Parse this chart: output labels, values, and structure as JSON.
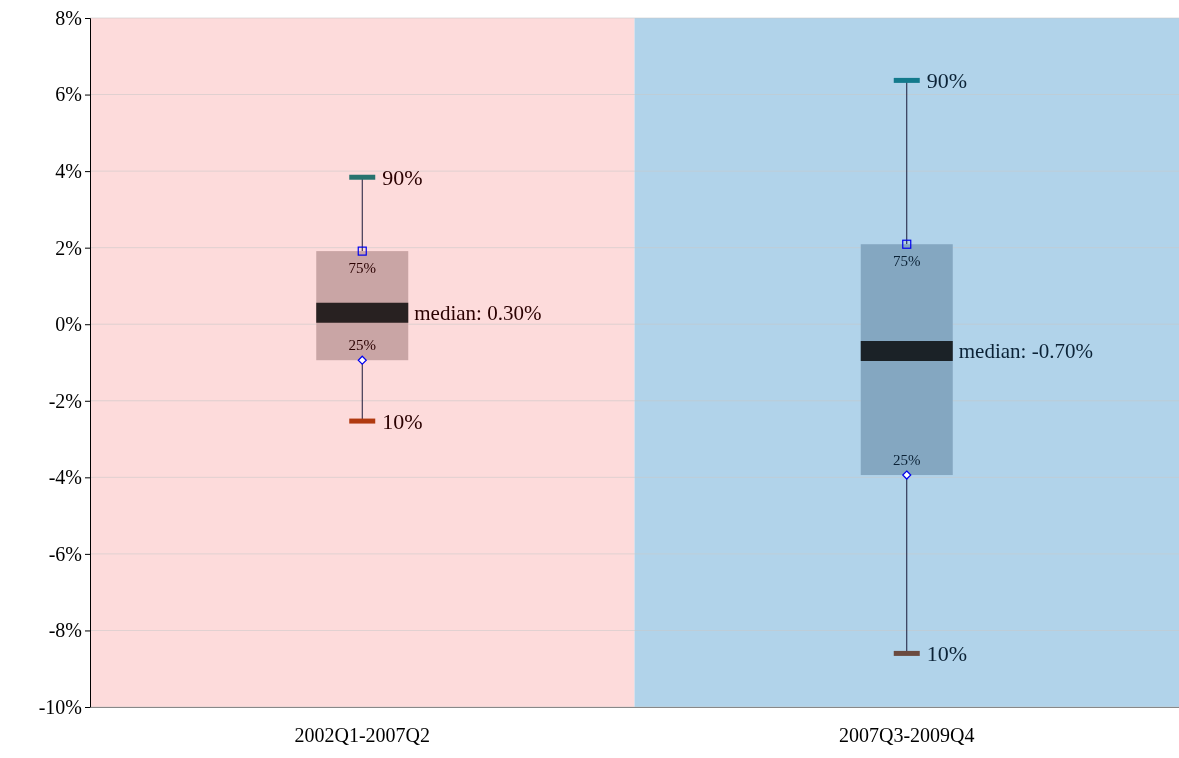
{
  "chart_data": {
    "type": "box",
    "categories": [
      "2002Q1-2007Q2",
      "2007Q3-2009Q4"
    ],
    "boxes": [
      {
        "low": -2.53,
        "q1": -0.94,
        "median": 0.3,
        "q3": 1.91,
        "high": 3.84
      },
      {
        "low": -8.6,
        "q1": -3.94,
        "median": -0.7,
        "q3": 2.09,
        "high": 6.37
      }
    ],
    "colors": [
      "#c9a5a5",
      "#84a7c1"
    ],
    "ylim": [
      -10,
      8
    ],
    "yticks": [
      {
        "value": -10,
        "label": "-10%"
      },
      {
        "value": -8,
        "label": "-8%"
      },
      {
        "value": -6,
        "label": "-6%"
      },
      {
        "value": -4,
        "label": "-4%"
      },
      {
        "value": -2,
        "label": "-2%"
      },
      {
        "value": 0,
        "label": "0%"
      },
      {
        "value": 2,
        "label": "2%"
      },
      {
        "value": 4,
        "label": "4%"
      },
      {
        "value": 6,
        "label": "6%"
      },
      {
        "value": 8,
        "label": "8%"
      }
    ],
    "grid": "y",
    "bands": [
      {
        "axis": "x",
        "from": "2002Q1-2007Q2",
        "to": "2002Q1-2007Q2",
        "color": "#fddbdb"
      },
      {
        "axis": "x",
        "from": "2007Q3-2009Q4",
        "to": "2007Q3-2009Q4",
        "color": "#b1d3ea"
      }
    ],
    "annotations": [
      {
        "text": "90%",
        "x": "2002Q1-2007Q2",
        "y": 3.84
      },
      {
        "text": "75%",
        "x": "2002Q1-2007Q2",
        "y": 1.91
      },
      {
        "text": "median: 0.30%",
        "x": "2002Q1-2007Q2",
        "y": 0.3
      },
      {
        "text": "25%",
        "x": "2002Q1-2007Q2",
        "y": -0.94
      },
      {
        "text": "10%",
        "x": "2002Q1-2007Q2",
        "y": -2.53
      },
      {
        "text": "90%",
        "x": "2007Q3-2009Q4",
        "y": 6.37
      },
      {
        "text": "75%",
        "x": "2007Q3-2009Q4",
        "y": 2.09
      },
      {
        "text": "median: -0.70%",
        "x": "2007Q3-2009Q4",
        "y": -0.7
      },
      {
        "text": "25%",
        "x": "2007Q3-2009Q4",
        "y": -3.94
      },
      {
        "text": "10%",
        "x": "2007Q3-2009Q4",
        "y": -8.6
      }
    ]
  }
}
